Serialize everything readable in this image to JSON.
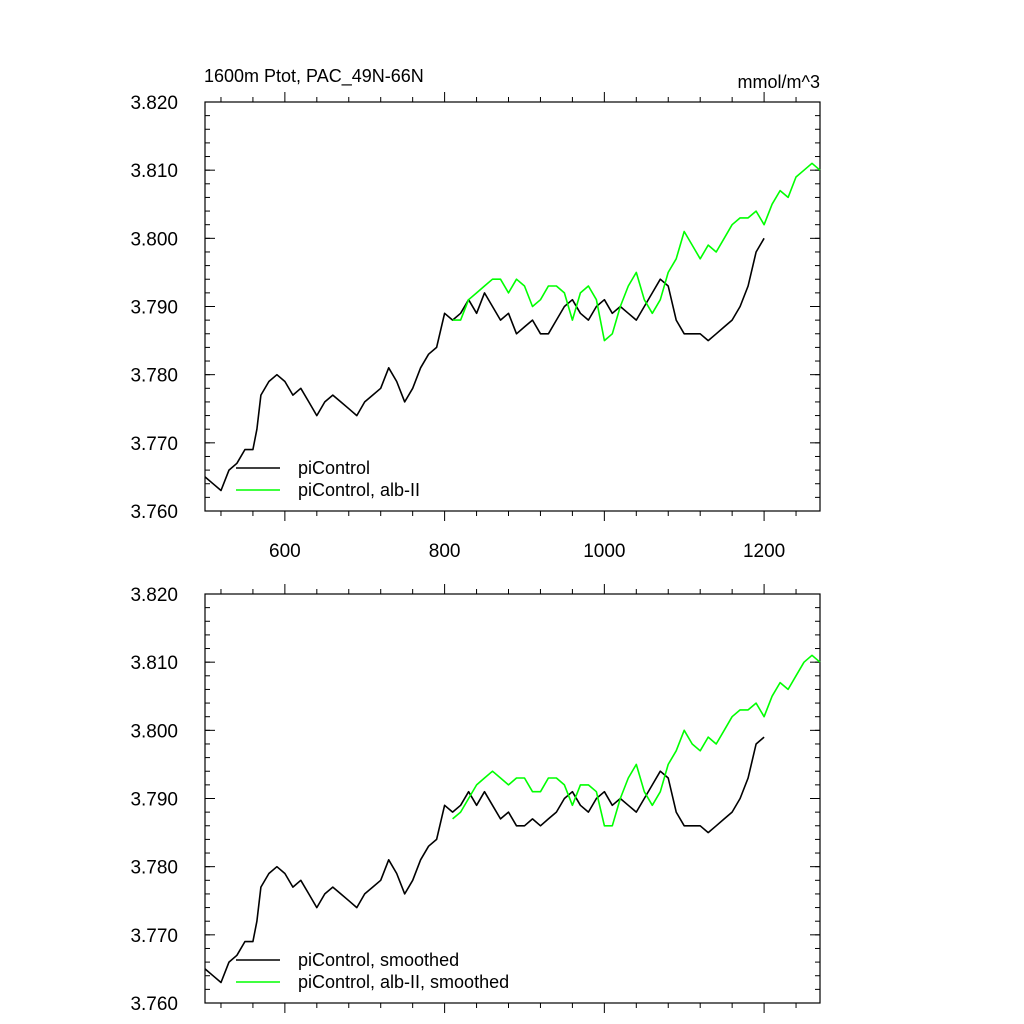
{
  "chart_data": [
    {
      "type": "line",
      "title_left": "1600m Ptot, PAC_49N-66N",
      "title_right": "mmol/m^3",
      "xlim": [
        500,
        1270
      ],
      "ylim": [
        3.76,
        3.82
      ],
      "x_ticks": [
        600,
        800,
        1000,
        1200
      ],
      "x_tick_labels": [
        "600",
        "800",
        "1000",
        "1200"
      ],
      "y_ticks": [
        3.76,
        3.77,
        3.78,
        3.79,
        3.8,
        3.81,
        3.82
      ],
      "y_tick_labels": [
        "3.760",
        "3.770",
        "3.780",
        "3.790",
        "3.800",
        "3.810",
        "3.820"
      ],
      "legend_position": "bottom-left",
      "series": [
        {
          "name": "piControl",
          "color": "#000000",
          "x": [
            500,
            510,
            520,
            530,
            540,
            550,
            560,
            565,
            570,
            580,
            590,
            600,
            610,
            620,
            630,
            640,
            650,
            660,
            670,
            680,
            690,
            700,
            710,
            720,
            730,
            740,
            750,
            760,
            770,
            780,
            790,
            800,
            810,
            820,
            830,
            840,
            850,
            860,
            870,
            880,
            890,
            900,
            910,
            920,
            930,
            940,
            950,
            960,
            970,
            980,
            990,
            1000,
            1010,
            1020,
            1030,
            1040,
            1050,
            1060,
            1070,
            1080,
            1090,
            1100,
            1110,
            1120,
            1130,
            1140,
            1150,
            1160,
            1170,
            1180,
            1190,
            1200
          ],
          "y": [
            3.765,
            3.764,
            3.763,
            3.766,
            3.767,
            3.769,
            3.769,
            3.772,
            3.777,
            3.779,
            3.78,
            3.779,
            3.777,
            3.778,
            3.776,
            3.774,
            3.776,
            3.777,
            3.776,
            3.775,
            3.774,
            3.776,
            3.777,
            3.778,
            3.781,
            3.779,
            3.776,
            3.778,
            3.781,
            3.783,
            3.784,
            3.789,
            3.788,
            3.789,
            3.791,
            3.789,
            3.792,
            3.79,
            3.788,
            3.789,
            3.786,
            3.787,
            3.788,
            3.786,
            3.786,
            3.788,
            3.79,
            3.791,
            3.789,
            3.788,
            3.79,
            3.791,
            3.789,
            3.79,
            3.789,
            3.788,
            3.79,
            3.792,
            3.794,
            3.793,
            3.788,
            3.786,
            3.786,
            3.786,
            3.785,
            3.786,
            3.787,
            3.788,
            3.79,
            3.793,
            3.798,
            3.8
          ]
        },
        {
          "name": "piControl, alb-II",
          "color": "#00ff00",
          "x": [
            810,
            820,
            830,
            840,
            850,
            860,
            870,
            880,
            890,
            900,
            910,
            920,
            930,
            940,
            950,
            960,
            970,
            980,
            990,
            1000,
            1010,
            1020,
            1030,
            1040,
            1050,
            1060,
            1070,
            1080,
            1090,
            1100,
            1110,
            1120,
            1130,
            1140,
            1150,
            1160,
            1170,
            1180,
            1190,
            1200,
            1210,
            1220,
            1230,
            1240,
            1250,
            1260,
            1270
          ],
          "y": [
            3.788,
            3.788,
            3.791,
            3.792,
            3.793,
            3.794,
            3.794,
            3.792,
            3.794,
            3.793,
            3.79,
            3.791,
            3.793,
            3.793,
            3.792,
            3.788,
            3.792,
            3.793,
            3.791,
            3.785,
            3.786,
            3.79,
            3.793,
            3.795,
            3.791,
            3.789,
            3.791,
            3.795,
            3.797,
            3.801,
            3.799,
            3.797,
            3.799,
            3.798,
            3.8,
            3.802,
            3.803,
            3.803,
            3.804,
            3.802,
            3.805,
            3.807,
            3.806,
            3.809,
            3.81,
            3.811,
            3.81
          ]
        }
      ]
    },
    {
      "type": "line",
      "xlim": [
        500,
        1270
      ],
      "ylim": [
        3.76,
        3.82
      ],
      "x_ticks": [
        600,
        800,
        1000,
        1200
      ],
      "y_ticks": [
        3.76,
        3.77,
        3.78,
        3.79,
        3.8,
        3.81,
        3.82
      ],
      "y_tick_labels": [
        "3.760",
        "3.770",
        "3.780",
        "3.790",
        "3.800",
        "3.810",
        "3.820"
      ],
      "legend_position": "bottom-left",
      "series": [
        {
          "name": "piControl, smoothed",
          "color": "#000000",
          "x": [
            500,
            510,
            520,
            530,
            540,
            550,
            560,
            565,
            570,
            580,
            590,
            600,
            610,
            620,
            630,
            640,
            650,
            660,
            670,
            680,
            690,
            700,
            710,
            720,
            730,
            740,
            750,
            760,
            770,
            780,
            790,
            800,
            810,
            820,
            830,
            840,
            850,
            860,
            870,
            880,
            890,
            900,
            910,
            920,
            930,
            940,
            950,
            960,
            970,
            980,
            990,
            1000,
            1010,
            1020,
            1030,
            1040,
            1050,
            1060,
            1070,
            1080,
            1090,
            1100,
            1110,
            1120,
            1130,
            1140,
            1150,
            1160,
            1170,
            1180,
            1190,
            1200
          ],
          "y": [
            3.765,
            3.764,
            3.763,
            3.766,
            3.767,
            3.769,
            3.769,
            3.772,
            3.777,
            3.779,
            3.78,
            3.779,
            3.777,
            3.778,
            3.776,
            3.774,
            3.776,
            3.777,
            3.776,
            3.775,
            3.774,
            3.776,
            3.777,
            3.778,
            3.781,
            3.779,
            3.776,
            3.778,
            3.781,
            3.783,
            3.784,
            3.789,
            3.788,
            3.789,
            3.791,
            3.789,
            3.791,
            3.789,
            3.787,
            3.788,
            3.786,
            3.786,
            3.787,
            3.786,
            3.787,
            3.788,
            3.79,
            3.791,
            3.789,
            3.788,
            3.79,
            3.791,
            3.789,
            3.79,
            3.789,
            3.788,
            3.79,
            3.792,
            3.794,
            3.793,
            3.788,
            3.786,
            3.786,
            3.786,
            3.785,
            3.786,
            3.787,
            3.788,
            3.79,
            3.793,
            3.798,
            3.799
          ]
        },
        {
          "name": "piControl, alb-II, smoothed",
          "color": "#00ff00",
          "x": [
            810,
            820,
            830,
            840,
            850,
            860,
            870,
            880,
            890,
            900,
            910,
            920,
            930,
            940,
            950,
            960,
            970,
            980,
            990,
            1000,
            1010,
            1020,
            1030,
            1040,
            1050,
            1060,
            1070,
            1080,
            1090,
            1100,
            1110,
            1120,
            1130,
            1140,
            1150,
            1160,
            1170,
            1180,
            1190,
            1200,
            1210,
            1220,
            1230,
            1240,
            1250,
            1260,
            1270
          ],
          "y": [
            3.787,
            3.788,
            3.79,
            3.792,
            3.793,
            3.794,
            3.793,
            3.792,
            3.793,
            3.793,
            3.791,
            3.791,
            3.793,
            3.793,
            3.792,
            3.789,
            3.792,
            3.792,
            3.791,
            3.786,
            3.786,
            3.79,
            3.793,
            3.795,
            3.791,
            3.789,
            3.791,
            3.795,
            3.797,
            3.8,
            3.798,
            3.797,
            3.799,
            3.798,
            3.8,
            3.802,
            3.803,
            3.803,
            3.804,
            3.802,
            3.805,
            3.807,
            3.806,
            3.808,
            3.81,
            3.811,
            3.81
          ]
        }
      ]
    }
  ]
}
